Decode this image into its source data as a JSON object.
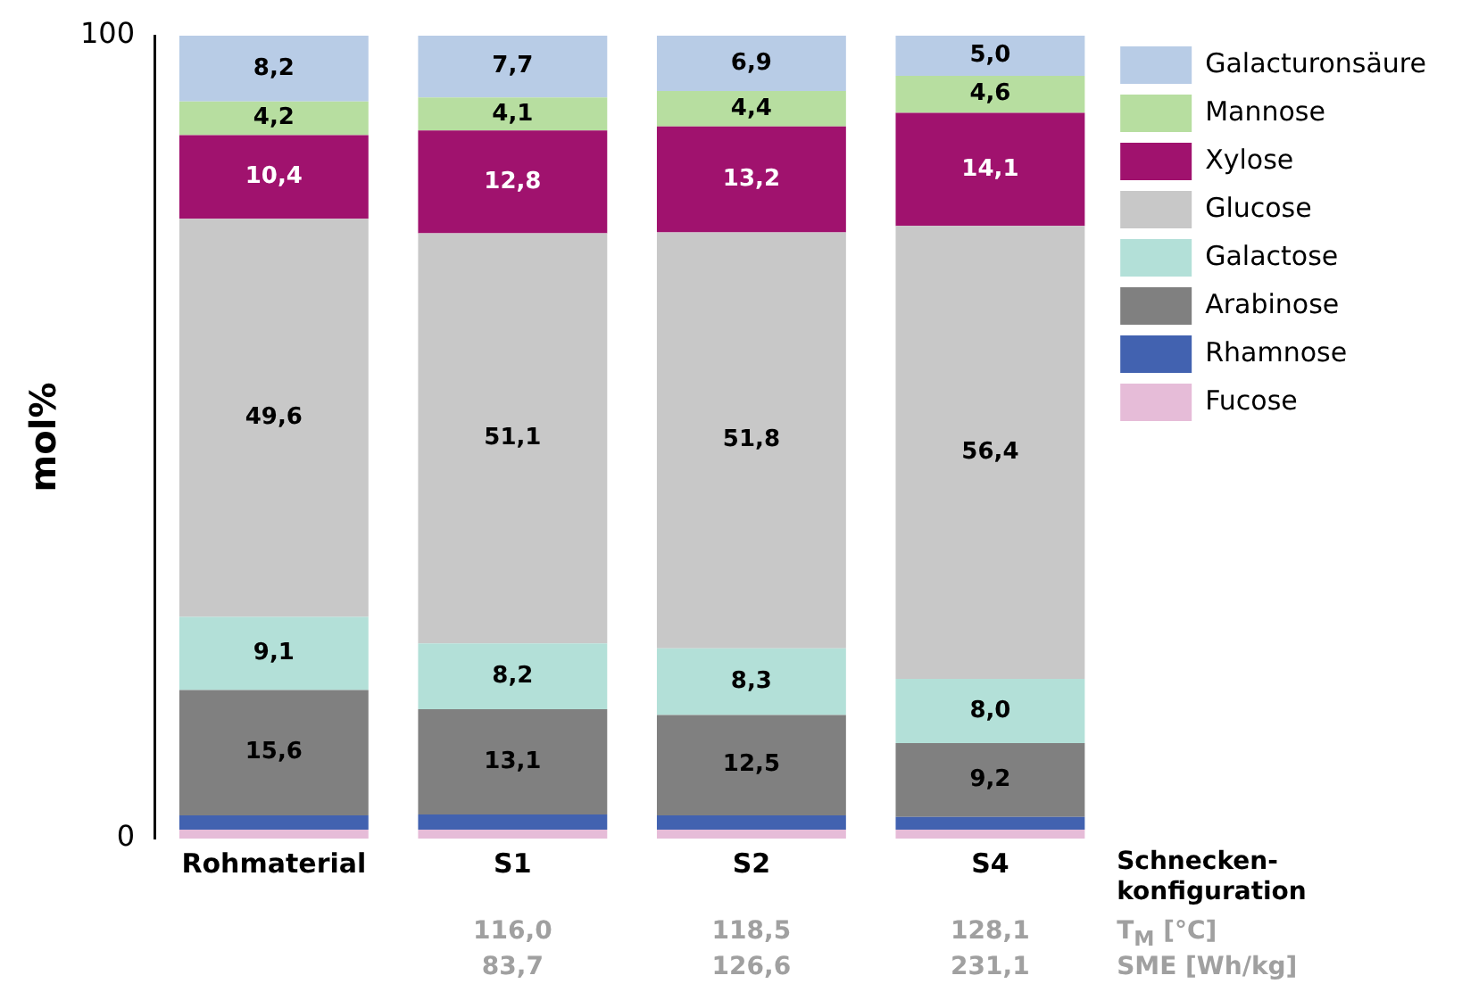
{
  "chart_data": {
    "type": "bar",
    "stacked": true,
    "ylabel": "mol%",
    "xlabel": "Schnecken-konfiguration",
    "categories": [
      "Rohmaterial",
      "S1",
      "S2",
      "S4"
    ],
    "ylim": [
      0,
      100
    ],
    "yticks": [
      0,
      100
    ],
    "grid": false,
    "legend": "right",
    "series": [
      {
        "name": "Fucose",
        "color": "#e6bcd8",
        "values": [
          1.1,
          1.1,
          1.1,
          1.1
        ],
        "value_labels": [
          null,
          null,
          null,
          null
        ]
      },
      {
        "name": "Rhamnose",
        "color": "#4262b0",
        "values": [
          1.8,
          1.9,
          1.8,
          1.6
        ],
        "value_labels": [
          null,
          null,
          null,
          null
        ]
      },
      {
        "name": "Arabinose",
        "color": "#808080",
        "values": [
          15.6,
          13.1,
          12.5,
          9.2
        ],
        "value_labels": [
          "15,6",
          "13,1",
          "12,5",
          "9,2"
        ]
      },
      {
        "name": "Galactose",
        "color": "#b3e0d8",
        "values": [
          9.1,
          8.2,
          8.3,
          8.0
        ],
        "value_labels": [
          "9,1",
          "8,2",
          "8,3",
          "8,0"
        ]
      },
      {
        "name": "Glucose",
        "color": "#c8c8c8",
        "values": [
          49.6,
          51.1,
          51.8,
          56.4
        ],
        "value_labels": [
          "49,6",
          "51,1",
          "51,8",
          "56,4"
        ]
      },
      {
        "name": "Xylose",
        "color": "#a0126e",
        "values": [
          10.4,
          12.8,
          13.2,
          14.1
        ],
        "value_labels": [
          "10,4",
          "12,8",
          "13,2",
          "14,1"
        ]
      },
      {
        "name": "Mannose",
        "color": "#b7dea0",
        "values": [
          4.2,
          4.1,
          4.4,
          4.6
        ],
        "value_labels": [
          "4,2",
          "4,1",
          "4,4",
          "4,6"
        ]
      },
      {
        "name": "Galacturonsäure",
        "color": "#b8cce6",
        "values": [
          8.2,
          7.7,
          6.9,
          5.0
        ],
        "value_labels": [
          "8,2",
          "7,7",
          "6,9",
          "5,0"
        ]
      }
    ],
    "annotations": [
      "116,0",
      "118,5",
      "128,1",
      "T$_{M}$ [°C]",
      "83,7",
      "126,6",
      "231,1",
      "SME [Wh/kg]"
    ]
  }
}
